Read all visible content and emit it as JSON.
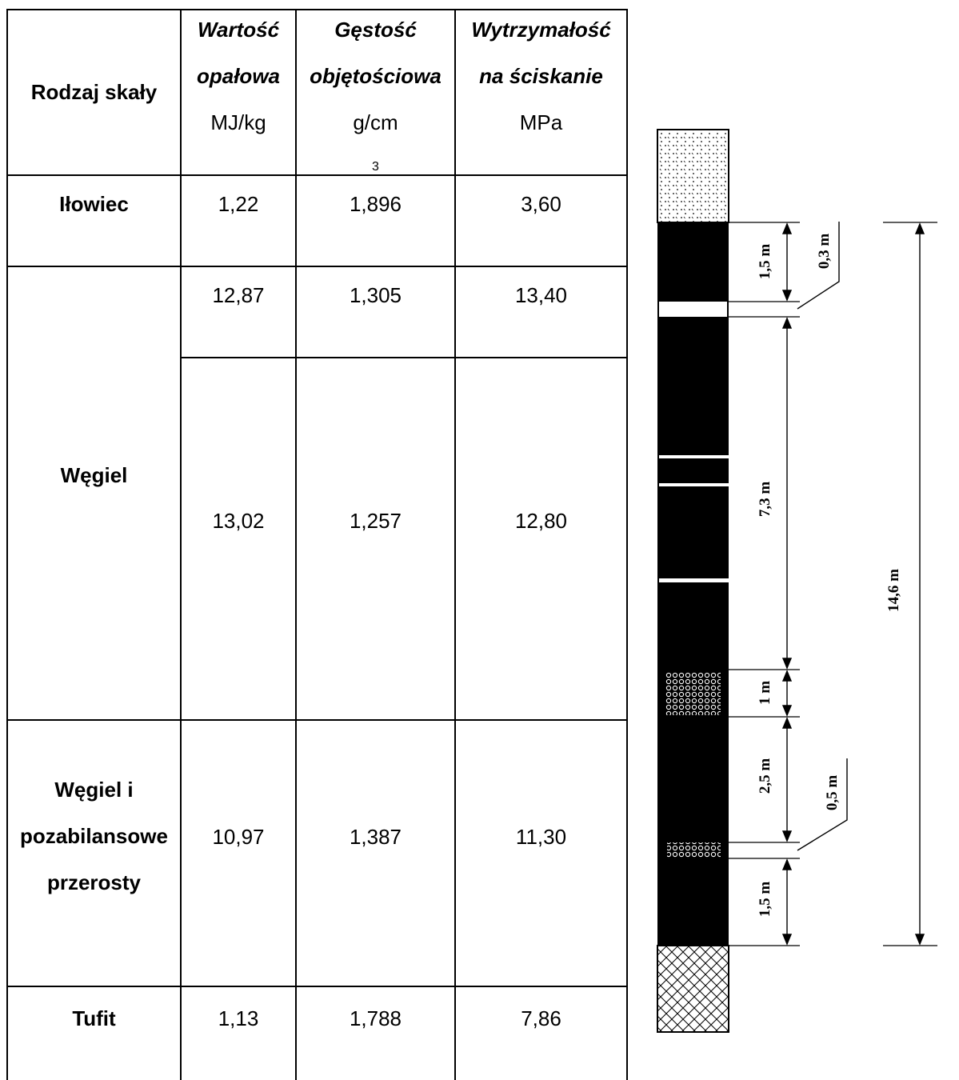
{
  "table": {
    "headers": [
      {
        "line1": "",
        "line2": "Rodzaj skały",
        "unit": ""
      },
      {
        "line1": "Wartość",
        "line2": "opałowa",
        "unit": "MJ/kg"
      },
      {
        "line1": "Gęstość",
        "line2": "objętościowa",
        "unit_base": "g/cm",
        "unit_sup": "3"
      },
      {
        "line1": "Wytrzymałość",
        "line2": "na ściskanie",
        "unit": "MPa"
      }
    ],
    "rows": [
      {
        "rock": "Iłowiec",
        "calorific": "1,22",
        "density": "1,896",
        "strength": "3,60"
      },
      {
        "rock": "Węgiel",
        "sub": [
          {
            "calorific": "12,87",
            "density": "1,305",
            "strength": "13,40"
          },
          {
            "calorific": "13,02",
            "density": "1,257",
            "strength": "12,80"
          }
        ]
      },
      {
        "rock_lines": [
          "Węgiel i",
          "pozabilansowe",
          "przerosty"
        ],
        "calorific": "10,97",
        "density": "1,387",
        "strength": "11,30"
      },
      {
        "rock": "Tufit",
        "calorific": "1,13",
        "density": "1,788",
        "strength": "7,86"
      }
    ]
  },
  "profile": {
    "dimensions": [
      "1,5 m",
      "0,3 m",
      "7,3 m",
      "1 m",
      "2,5 m",
      "0,5 m",
      "1,5 m",
      "14,6 m"
    ]
  }
}
